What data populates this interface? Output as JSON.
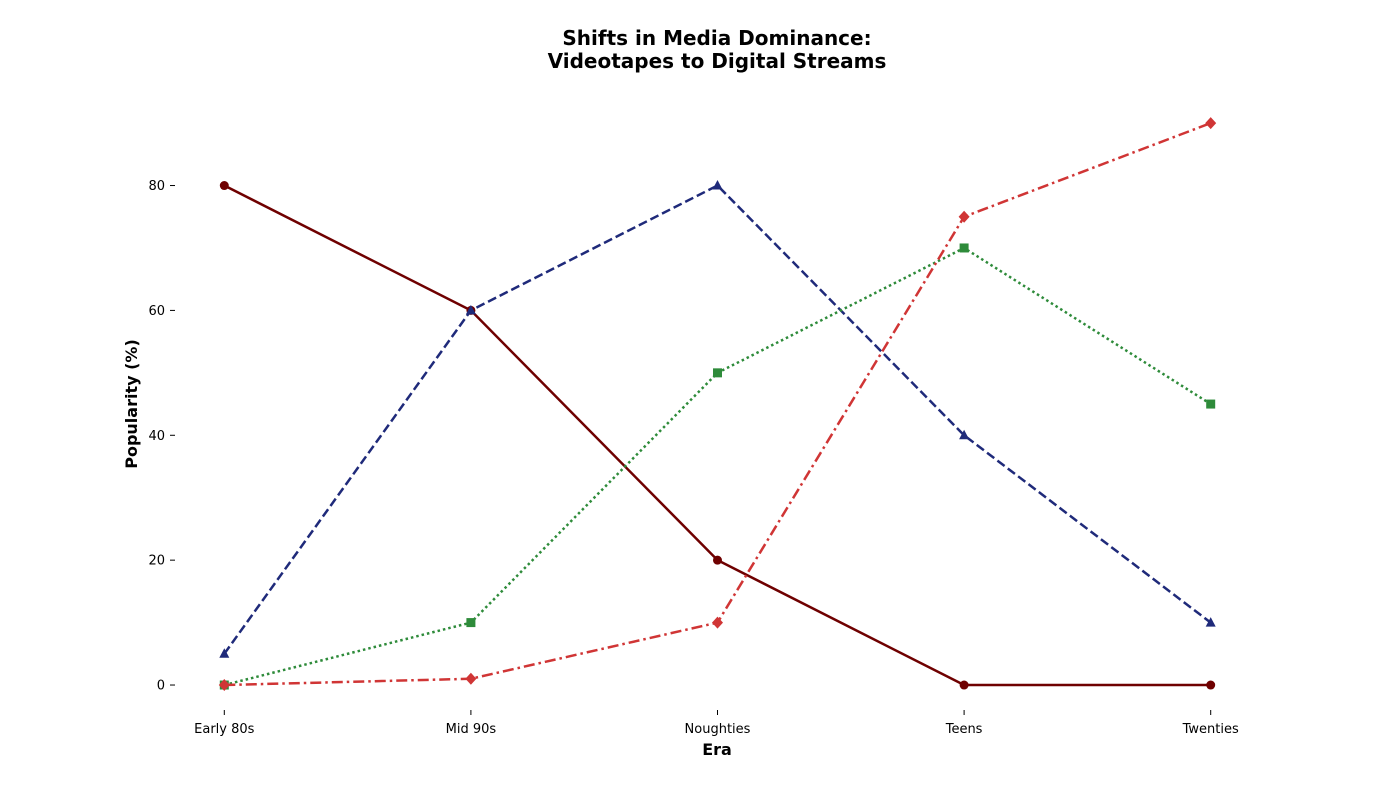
{
  "chart_data": {
    "type": "line",
    "title": [
      "Shifts in Media Dominance:",
      "Videotapes to Digital Streams"
    ],
    "xlabel": "Era",
    "ylabel": "Popularity (%)",
    "categories": [
      "Early 80s",
      "Mid 90s",
      "Noughties",
      "Teens",
      "Twenties"
    ],
    "ylim": [
      -4,
      94.5
    ],
    "yticks": [
      0,
      20,
      40,
      60,
      80
    ],
    "grid": false,
    "legend": "none",
    "series": [
      {
        "key": "maroon",
        "color": "#6f0000",
        "dash": "solid",
        "marker": "circle",
        "values": [
          80,
          60,
          20,
          0,
          0
        ]
      },
      {
        "key": "navy",
        "color": "#1f2a7a",
        "dash": "dashed",
        "marker": "triangle",
        "values": [
          5,
          60,
          80,
          40,
          10
        ]
      },
      {
        "key": "green",
        "color": "#2e8b3a",
        "dash": "dotted",
        "marker": "square",
        "values": [
          0,
          10,
          50,
          70,
          45
        ]
      },
      {
        "key": "red",
        "color": "#d03535",
        "dash": "dashdot",
        "marker": "diamond",
        "values": [
          0,
          1,
          10,
          75,
          90
        ]
      }
    ]
  }
}
